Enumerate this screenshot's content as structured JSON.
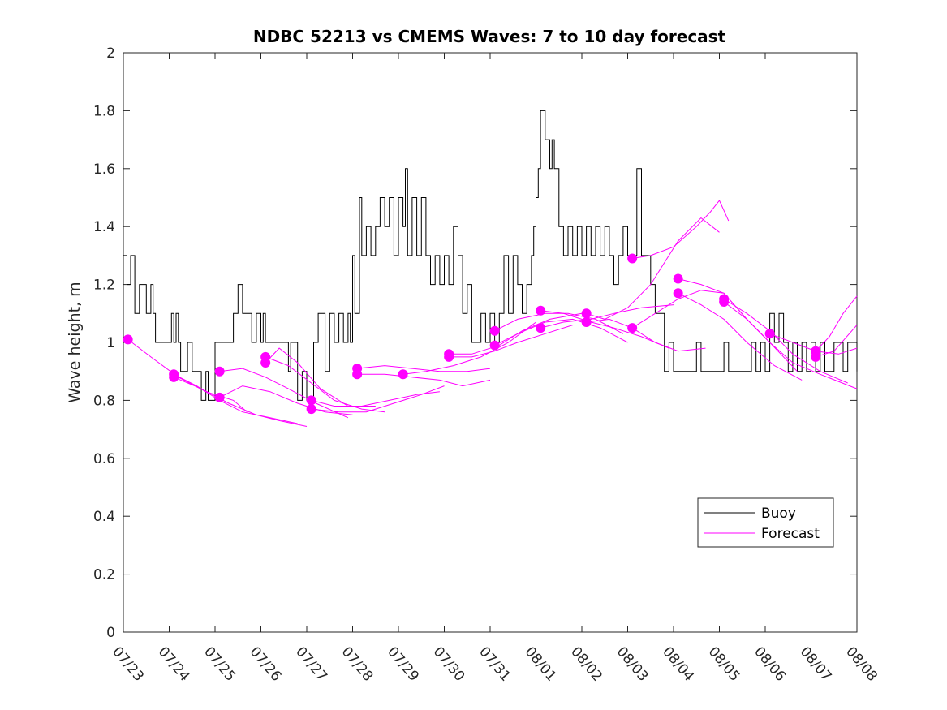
{
  "chart_data": {
    "type": "line",
    "title": "NDBC 52213 vs CMEMS Waves: 7 to 10 day forecast",
    "xlabel": "",
    "ylabel": "Wave height, m",
    "x_ticks": [
      "07/23",
      "07/24",
      "07/25",
      "07/26",
      "07/27",
      "07/28",
      "07/29",
      "07/30",
      "07/31",
      "08/01",
      "08/02",
      "08/03",
      "08/04",
      "08/05",
      "08/06",
      "08/07",
      "08/08"
    ],
    "xlim": [
      0,
      16
    ],
    "ylim": [
      0,
      2
    ],
    "y_ticks": [
      0,
      0.2,
      0.4,
      0.6,
      0.8,
      1,
      1.2,
      1.4,
      1.6,
      1.8,
      2
    ],
    "grid": false,
    "legend_position": "lower-right",
    "colors": {
      "buoy": "#000000",
      "forecast": "#ff00ff"
    },
    "buoy": {
      "name": "Buoy",
      "points": [
        [
          0,
          1.3
        ],
        [
          0.08,
          1.2
        ],
        [
          0.16,
          1.3
        ],
        [
          0.25,
          1.1
        ],
        [
          0.35,
          1.2
        ],
        [
          0.5,
          1.1
        ],
        [
          0.6,
          1.2
        ],
        [
          0.65,
          1.1
        ],
        [
          0.7,
          1.0
        ],
        [
          1.0,
          1.0
        ],
        [
          1.05,
          1.1
        ],
        [
          1.1,
          1.0
        ],
        [
          1.15,
          1.1
        ],
        [
          1.2,
          1.0
        ],
        [
          1.25,
          0.9
        ],
        [
          1.4,
          1.0
        ],
        [
          1.5,
          0.9
        ],
        [
          1.6,
          0.9
        ],
        [
          1.7,
          0.8
        ],
        [
          1.8,
          0.9
        ],
        [
          1.85,
          0.8
        ],
        [
          1.95,
          0.8
        ],
        [
          2.0,
          1.0
        ],
        [
          2.3,
          1.0
        ],
        [
          2.4,
          1.1
        ],
        [
          2.5,
          1.2
        ],
        [
          2.6,
          1.1
        ],
        [
          2.7,
          1.1
        ],
        [
          2.8,
          1.0
        ],
        [
          2.9,
          1.1
        ],
        [
          3.0,
          1.0
        ],
        [
          3.05,
          1.1
        ],
        [
          3.1,
          1.0
        ],
        [
          3.5,
          1.0
        ],
        [
          3.6,
          0.9
        ],
        [
          3.65,
          1.0
        ],
        [
          3.7,
          1.0
        ],
        [
          3.8,
          0.8
        ],
        [
          3.9,
          0.9
        ],
        [
          4.0,
          0.8
        ],
        [
          4.05,
          0.8
        ],
        [
          4.15,
          1.0
        ],
        [
          4.25,
          1.1
        ],
        [
          4.4,
          0.9
        ],
        [
          4.5,
          1.1
        ],
        [
          4.6,
          1.0
        ],
        [
          4.7,
          1.1
        ],
        [
          4.8,
          1.0
        ],
        [
          4.9,
          1.1
        ],
        [
          4.95,
          1.0
        ],
        [
          5.0,
          1.3
        ],
        [
          5.05,
          1.1
        ],
        [
          5.15,
          1.5
        ],
        [
          5.2,
          1.3
        ],
        [
          5.3,
          1.4
        ],
        [
          5.4,
          1.3
        ],
        [
          5.5,
          1.4
        ],
        [
          5.6,
          1.5
        ],
        [
          5.7,
          1.4
        ],
        [
          5.8,
          1.5
        ],
        [
          5.9,
          1.3
        ],
        [
          6.0,
          1.5
        ],
        [
          6.1,
          1.4
        ],
        [
          6.15,
          1.6
        ],
        [
          6.2,
          1.3
        ],
        [
          6.3,
          1.5
        ],
        [
          6.4,
          1.3
        ],
        [
          6.5,
          1.5
        ],
        [
          6.6,
          1.3
        ],
        [
          6.7,
          1.2
        ],
        [
          6.8,
          1.3
        ],
        [
          6.9,
          1.2
        ],
        [
          7.0,
          1.3
        ],
        [
          7.1,
          1.2
        ],
        [
          7.2,
          1.4
        ],
        [
          7.3,
          1.3
        ],
        [
          7.4,
          1.1
        ],
        [
          7.5,
          1.2
        ],
        [
          7.6,
          1.0
        ],
        [
          7.8,
          1.1
        ],
        [
          7.9,
          1.0
        ],
        [
          8.0,
          1.1
        ],
        [
          8.1,
          1.0
        ],
        [
          8.2,
          1.1
        ],
        [
          8.3,
          1.3
        ],
        [
          8.4,
          1.1
        ],
        [
          8.5,
          1.3
        ],
        [
          8.6,
          1.2
        ],
        [
          8.7,
          1.1
        ],
        [
          8.8,
          1.2
        ],
        [
          8.9,
          1.3
        ],
        [
          8.95,
          1.4
        ],
        [
          9.0,
          1.5
        ],
        [
          9.05,
          1.6
        ],
        [
          9.1,
          1.8
        ],
        [
          9.2,
          1.7
        ],
        [
          9.3,
          1.6
        ],
        [
          9.35,
          1.7
        ],
        [
          9.4,
          1.6
        ],
        [
          9.5,
          1.4
        ],
        [
          9.6,
          1.3
        ],
        [
          9.7,
          1.4
        ],
        [
          9.8,
          1.3
        ],
        [
          9.9,
          1.4
        ],
        [
          10.0,
          1.3
        ],
        [
          10.1,
          1.4
        ],
        [
          10.2,
          1.3
        ],
        [
          10.3,
          1.4
        ],
        [
          10.4,
          1.3
        ],
        [
          10.5,
          1.4
        ],
        [
          10.6,
          1.3
        ],
        [
          10.7,
          1.2
        ],
        [
          10.8,
          1.3
        ],
        [
          10.9,
          1.4
        ],
        [
          11.0,
          1.3
        ],
        [
          11.1,
          1.3
        ],
        [
          11.2,
          1.6
        ],
        [
          11.3,
          1.3
        ],
        [
          11.4,
          1.3
        ],
        [
          11.5,
          1.2
        ],
        [
          11.6,
          1.1
        ],
        [
          11.7,
          1.1
        ],
        [
          11.8,
          0.9
        ],
        [
          11.9,
          1.0
        ],
        [
          12.0,
          0.9
        ],
        [
          12.4,
          0.9
        ],
        [
          12.5,
          1.0
        ],
        [
          12.6,
          0.9
        ],
        [
          13.0,
          0.9
        ],
        [
          13.1,
          1.0
        ],
        [
          13.2,
          0.9
        ],
        [
          13.6,
          0.9
        ],
        [
          13.7,
          1.0
        ],
        [
          13.8,
          0.9
        ],
        [
          13.9,
          1.0
        ],
        [
          14.0,
          0.9
        ],
        [
          14.1,
          1.1
        ],
        [
          14.2,
          1.0
        ],
        [
          14.3,
          1.1
        ],
        [
          14.4,
          1.0
        ],
        [
          14.5,
          0.9
        ],
        [
          14.6,
          1.0
        ],
        [
          14.7,
          0.9
        ],
        [
          14.8,
          1.0
        ],
        [
          14.9,
          0.9
        ],
        [
          15.0,
          1.0
        ],
        [
          15.1,
          0.9
        ],
        [
          15.2,
          1.0
        ],
        [
          15.3,
          0.9
        ],
        [
          15.5,
          1.0
        ],
        [
          15.7,
          0.9
        ],
        [
          15.8,
          1.0
        ],
        [
          16.0,
          0.9
        ]
      ]
    },
    "forecast": {
      "name": "Forecast",
      "runs": [
        [
          [
            0.1,
            1.01
          ],
          [
            0.6,
            0.95
          ],
          [
            1.2,
            0.88
          ],
          [
            1.8,
            0.83
          ],
          [
            2.4,
            0.8
          ],
          [
            2.7,
            0.76
          ]
        ],
        [
          [
            1.1,
            0.89
          ],
          [
            1.6,
            0.85
          ],
          [
            2.1,
            0.8
          ],
          [
            2.6,
            0.76
          ],
          [
            3.2,
            0.74
          ],
          [
            3.8,
            0.72
          ]
        ],
        [
          [
            1.1,
            0.88
          ],
          [
            1.7,
            0.84
          ],
          [
            2.3,
            0.79
          ],
          [
            2.9,
            0.75
          ],
          [
            3.4,
            0.73
          ],
          [
            4.0,
            0.71
          ]
        ],
        [
          [
            2.1,
            0.9
          ],
          [
            2.6,
            0.91
          ],
          [
            3.1,
            0.88
          ],
          [
            3.6,
            0.84
          ],
          [
            4.2,
            0.79
          ],
          [
            4.9,
            0.74
          ]
        ],
        [
          [
            2.1,
            0.81
          ],
          [
            2.6,
            0.85
          ],
          [
            3.2,
            0.83
          ],
          [
            3.8,
            0.79
          ],
          [
            4.4,
            0.76
          ],
          [
            5.0,
            0.75
          ]
        ],
        [
          [
            3.1,
            0.95
          ],
          [
            3.6,
            0.92
          ],
          [
            4.1,
            0.86
          ],
          [
            4.6,
            0.8
          ],
          [
            5.2,
            0.77
          ],
          [
            5.7,
            0.76
          ]
        ],
        [
          [
            3.1,
            0.93
          ],
          [
            3.4,
            0.98
          ],
          [
            3.8,
            0.93
          ],
          [
            4.3,
            0.84
          ],
          [
            4.9,
            0.78
          ],
          [
            5.5,
            0.78
          ]
        ],
        [
          [
            4.1,
            0.8
          ],
          [
            4.6,
            0.78
          ],
          [
            5.2,
            0.78
          ],
          [
            5.8,
            0.8
          ],
          [
            6.4,
            0.82
          ],
          [
            6.9,
            0.83
          ]
        ],
        [
          [
            4.1,
            0.77
          ],
          [
            4.7,
            0.76
          ],
          [
            5.3,
            0.76
          ],
          [
            5.9,
            0.79
          ],
          [
            6.5,
            0.82
          ],
          [
            7.0,
            0.85
          ]
        ],
        [
          [
            5.1,
            0.91
          ],
          [
            5.7,
            0.92
          ],
          [
            6.3,
            0.91
          ],
          [
            6.9,
            0.9
          ],
          [
            7.5,
            0.9
          ],
          [
            8.0,
            0.91
          ]
        ],
        [
          [
            5.1,
            0.89
          ],
          [
            5.7,
            0.89
          ],
          [
            6.3,
            0.88
          ],
          [
            6.9,
            0.87
          ],
          [
            7.4,
            0.85
          ],
          [
            8.0,
            0.87
          ]
        ],
        [
          [
            6.1,
            0.89
          ],
          [
            6.6,
            0.9
          ],
          [
            7.2,
            0.92
          ],
          [
            7.8,
            0.95
          ],
          [
            8.4,
            1.0
          ],
          [
            9.0,
            1.07
          ]
        ],
        [
          [
            7.1,
            0.96
          ],
          [
            7.6,
            0.96
          ],
          [
            8.2,
            0.99
          ],
          [
            8.7,
            1.04
          ],
          [
            9.3,
            1.08
          ],
          [
            10.0,
            1.1
          ]
        ],
        [
          [
            7.1,
            0.95
          ],
          [
            7.6,
            0.95
          ],
          [
            8.1,
            0.97
          ],
          [
            8.6,
            1.0
          ],
          [
            9.2,
            1.03
          ],
          [
            9.8,
            1.06
          ]
        ],
        [
          [
            8.1,
            1.04
          ],
          [
            8.6,
            1.08
          ],
          [
            9.2,
            1.1
          ],
          [
            9.7,
            1.1
          ],
          [
            10.3,
            1.08
          ],
          [
            10.9,
            1.03
          ]
        ],
        [
          [
            8.1,
            0.99
          ],
          [
            8.6,
            1.03
          ],
          [
            9.2,
            1.07
          ],
          [
            9.8,
            1.08
          ],
          [
            10.4,
            1.05
          ],
          [
            11.0,
            1.0
          ]
        ],
        [
          [
            9.1,
            1.11
          ],
          [
            9.6,
            1.1
          ],
          [
            10.2,
            1.07
          ],
          [
            10.7,
            1.05
          ],
          [
            11.3,
            1.02
          ],
          [
            11.9,
            0.98
          ]
        ],
        [
          [
            9.1,
            1.05
          ],
          [
            9.6,
            1.07
          ],
          [
            10.2,
            1.08
          ],
          [
            10.7,
            1.1
          ],
          [
            11.3,
            1.12
          ],
          [
            12.0,
            1.13
          ]
        ],
        [
          [
            10.1,
            1.1
          ],
          [
            10.5,
            1.08
          ],
          [
            11.0,
            1.12
          ],
          [
            11.5,
            1.2
          ],
          [
            12.1,
            1.35
          ],
          [
            12.6,
            1.43
          ],
          [
            13.0,
            1.38
          ]
        ],
        [
          [
            10.1,
            1.07
          ],
          [
            10.6,
            1.08
          ],
          [
            11.1,
            1.05
          ],
          [
            11.6,
            1.0
          ],
          [
            12.1,
            0.97
          ],
          [
            12.7,
            0.98
          ]
        ],
        [
          [
            11.1,
            1.29
          ],
          [
            11.5,
            1.3
          ],
          [
            12.0,
            1.33
          ],
          [
            12.5,
            1.4
          ],
          [
            12.8,
            1.45
          ],
          [
            13.0,
            1.49
          ],
          [
            13.2,
            1.42
          ]
        ],
        [
          [
            11.1,
            1.05
          ],
          [
            11.6,
            1.1
          ],
          [
            12.1,
            1.15
          ],
          [
            12.6,
            1.18
          ],
          [
            13.1,
            1.17
          ],
          [
            13.6,
            1.08
          ],
          [
            14.1,
            1.0
          ]
        ],
        [
          [
            12.1,
            1.22
          ],
          [
            12.6,
            1.2
          ],
          [
            13.1,
            1.17
          ],
          [
            13.6,
            1.08
          ],
          [
            14.1,
            1.0
          ],
          [
            14.7,
            0.9
          ]
        ],
        [
          [
            12.1,
            1.17
          ],
          [
            12.6,
            1.13
          ],
          [
            13.1,
            1.08
          ],
          [
            13.6,
            1.0
          ],
          [
            14.2,
            0.92
          ],
          [
            14.8,
            0.87
          ]
        ],
        [
          [
            13.1,
            1.15
          ],
          [
            13.6,
            1.1
          ],
          [
            14.1,
            1.04
          ],
          [
            14.6,
            0.96
          ],
          [
            15.2,
            0.9
          ],
          [
            15.8,
            0.86
          ]
        ],
        [
          [
            13.1,
            1.14
          ],
          [
            13.6,
            1.08
          ],
          [
            14.1,
            1.0
          ],
          [
            14.6,
            0.93
          ],
          [
            15.2,
            0.89
          ],
          [
            16.0,
            0.84
          ]
        ],
        [
          [
            14.1,
            1.03
          ],
          [
            14.6,
            1.0
          ],
          [
            15.1,
            0.97
          ],
          [
            15.6,
            0.96
          ],
          [
            16.0,
            0.98
          ]
        ],
        [
          [
            15.1,
            0.97
          ],
          [
            15.4,
            1.02
          ],
          [
            15.7,
            1.1
          ],
          [
            16.0,
            1.16
          ]
        ],
        [
          [
            15.1,
            0.95
          ],
          [
            15.5,
            0.97
          ],
          [
            16.0,
            1.06
          ]
        ]
      ]
    },
    "legend": [
      "Buoy",
      "Forecast"
    ]
  }
}
